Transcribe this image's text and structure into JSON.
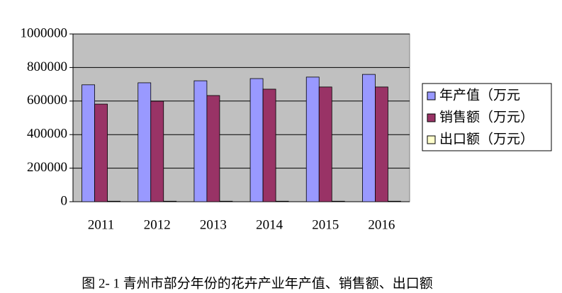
{
  "chart_data": {
    "type": "bar",
    "caption": "图 2- 1  青州市部分年份的花卉产业年产值、销售额、出口额",
    "categories": [
      "2011",
      "2012",
      "2013",
      "2014",
      "2015",
      "2016"
    ],
    "series": [
      {
        "name": "年产值（万元",
        "color": "#9999ff",
        "values": [
          697000,
          709000,
          721000,
          734000,
          743000,
          759000
        ]
      },
      {
        "name": "销售额（万元）",
        "color": "#993366",
        "values": [
          582000,
          599000,
          633000,
          671000,
          684000,
          684000
        ]
      },
      {
        "name": "出口额（万元）",
        "color": "#ffffcc",
        "values": [
          3000,
          3000,
          3000,
          3000,
          3000,
          3000
        ]
      }
    ],
    "ylim": [
      0,
      1000000
    ],
    "yticks": [
      0,
      200000,
      400000,
      600000,
      800000,
      1000000
    ],
    "grid": true,
    "plot_background": "#c0c0c0",
    "legend": "right"
  }
}
